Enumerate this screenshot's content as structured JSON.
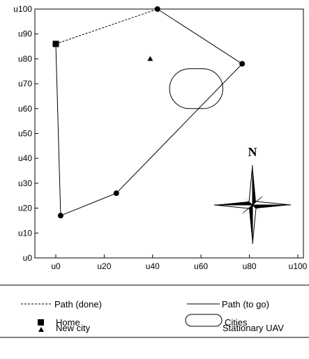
{
  "chart_data": {
    "type": "scatter",
    "title": "",
    "xlabel": "",
    "ylabel": "",
    "xlim": [
      0,
      100
    ],
    "ylim": [
      0,
      100
    ],
    "x_ticks": [
      0,
      20,
      40,
      60,
      80,
      100
    ],
    "y_ticks": [
      0,
      10,
      20,
      30,
      40,
      50,
      60,
      70,
      80,
      90,
      100
    ],
    "x_tick_labels": [
      "u0",
      "u20",
      "u40",
      "u60",
      "u80",
      "u100"
    ],
    "y_tick_labels": [
      "u0",
      "u10",
      "u20",
      "u30",
      "u40",
      "u50",
      "u60",
      "u70",
      "u80",
      "u90",
      "u100"
    ],
    "home": {
      "x": 0,
      "y": 86
    },
    "cities": [
      {
        "x": 42,
        "y": 100
      },
      {
        "x": 77,
        "y": 78
      },
      {
        "x": 25,
        "y": 26
      },
      {
        "x": 2,
        "y": 17
      }
    ],
    "new_city": {
      "x": 39,
      "y": 80
    },
    "stationary_uav": {
      "x_min": 47,
      "x_max": 69,
      "y_min": 60,
      "y_max": 76
    },
    "path_done": [
      {
        "x": 0,
        "y": 86
      },
      {
        "x": 42,
        "y": 100
      }
    ],
    "path_to_go": [
      {
        "x": 42,
        "y": 100
      },
      {
        "x": 77,
        "y": 78
      },
      {
        "x": 25,
        "y": 26
      },
      {
        "x": 2,
        "y": 17
      },
      {
        "x": 0,
        "y": 86
      }
    ],
    "compass_label": "N"
  },
  "legend": {
    "path_done": "Path (done)",
    "path_to_go": "Path (to go)",
    "home": "Home",
    "cities": "Cities",
    "new_city": "New city",
    "stationary_uav": "Stationary UAV"
  }
}
